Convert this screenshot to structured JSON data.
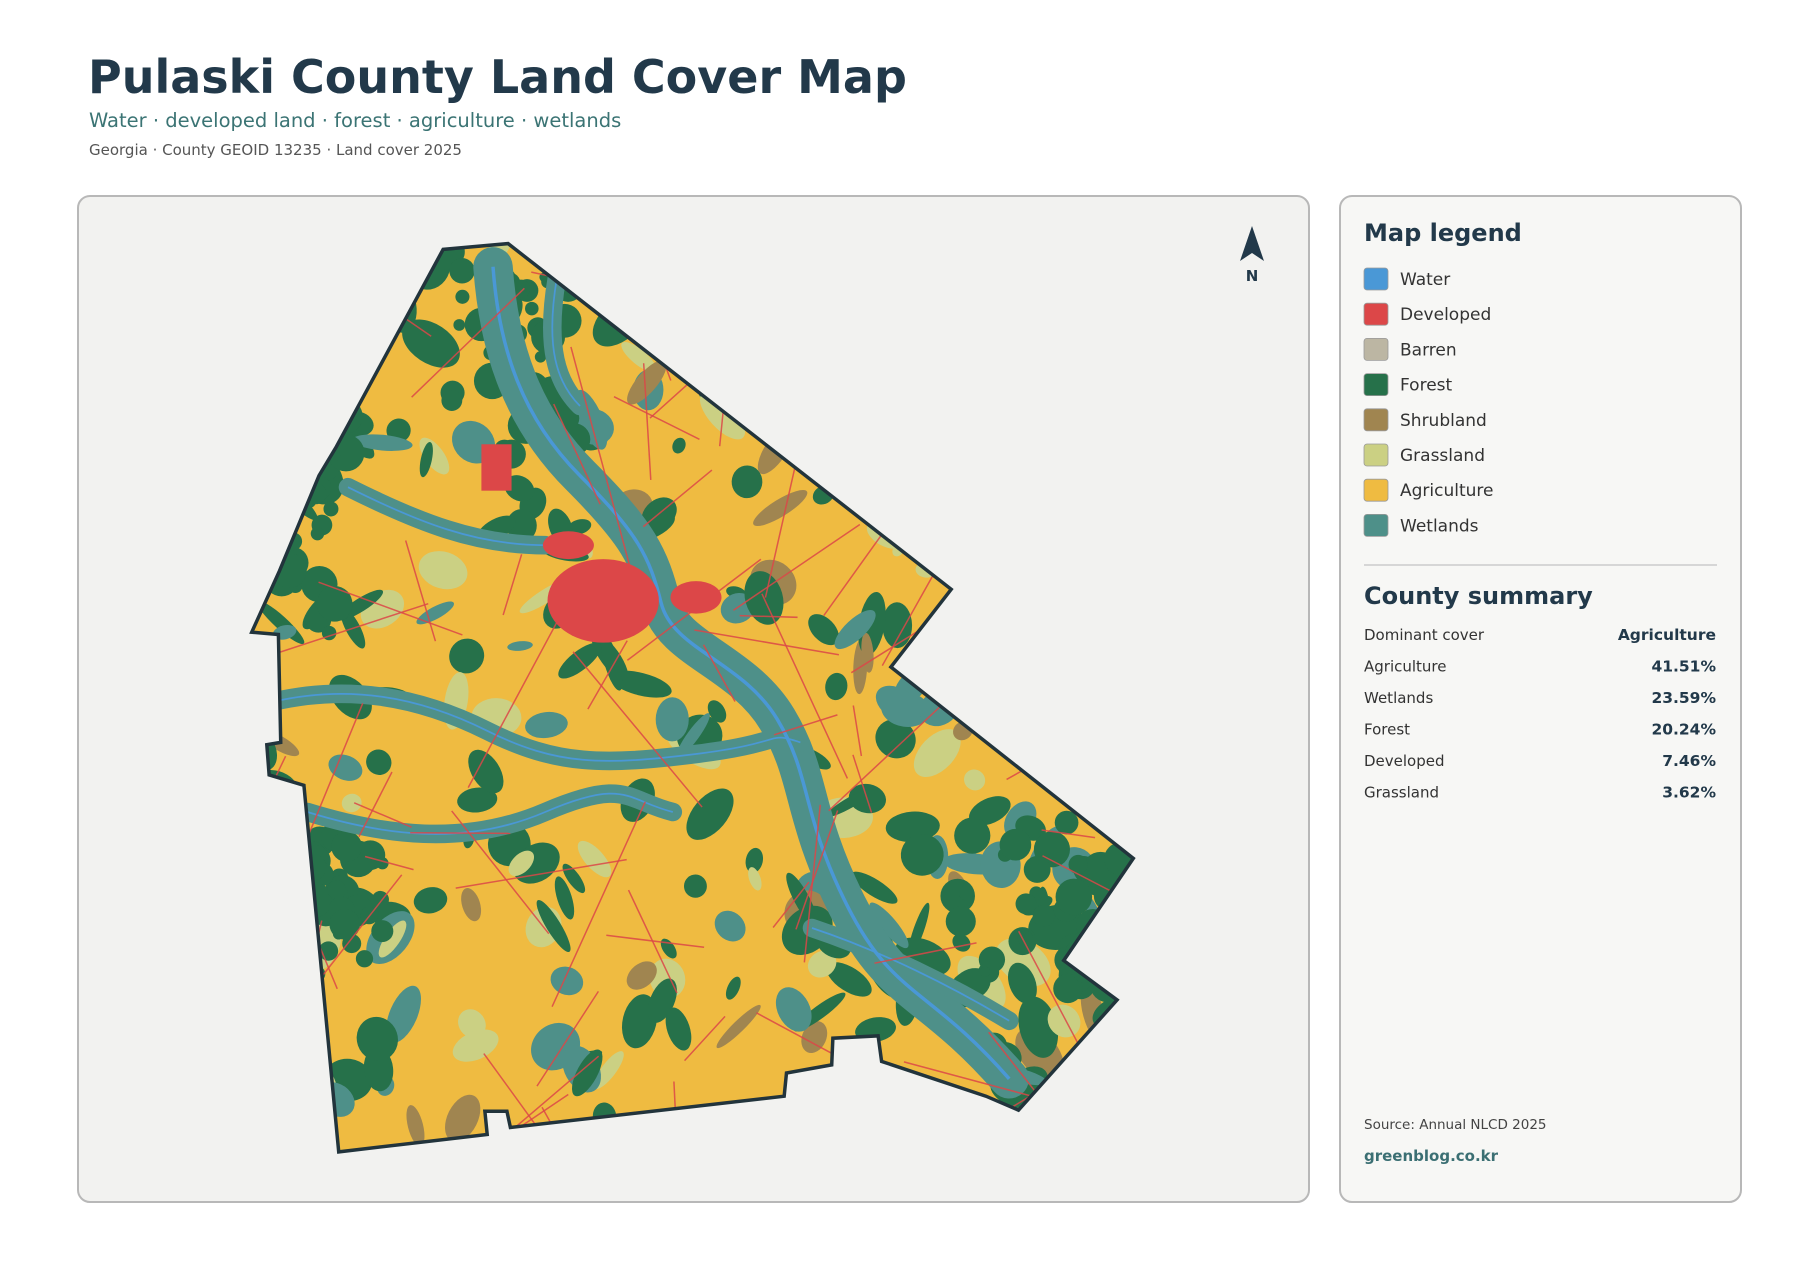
{
  "header": {
    "title": "Pulaski County Land Cover Map",
    "subtitle": "Water · developed land · forest · agriculture · wetlands",
    "meta": "Georgia · County GEOID 13235 · Land cover 2025"
  },
  "compass": "N",
  "legend": {
    "title": "Map legend",
    "items": [
      {
        "label": "Water",
        "color": "#4a98d6"
      },
      {
        "label": "Developed",
        "color": "#dc4748"
      },
      {
        "label": "Barren",
        "color": "#bcb6a3"
      },
      {
        "label": "Forest",
        "color": "#26714a"
      },
      {
        "label": "Shrubland",
        "color": "#a08550"
      },
      {
        "label": "Grassland",
        "color": "#cbd083"
      },
      {
        "label": "Agriculture",
        "color": "#efbb41"
      },
      {
        "label": "Wetlands",
        "color": "#4e9089"
      }
    ]
  },
  "summary": {
    "title": "County summary",
    "rows": [
      [
        "Dominant cover",
        "Agriculture"
      ],
      [
        "Agriculture",
        "41.51%"
      ],
      [
        "Wetlands",
        "23.59%"
      ],
      [
        "Forest",
        "20.24%"
      ],
      [
        "Developed",
        "7.46%"
      ],
      [
        "Grassland",
        "3.62%"
      ]
    ]
  },
  "footer": {
    "source": "Source: Annual NLCD 2025",
    "site": "greenblog.co.kr"
  }
}
